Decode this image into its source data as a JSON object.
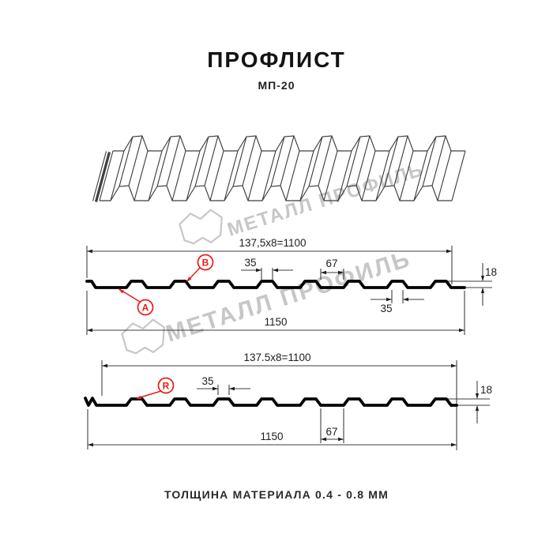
{
  "header": {
    "title": "ПРОФЛИСТ",
    "subtitle": "МП-20"
  },
  "watermark": {
    "brand": "МЕТАЛЛ ПРОФИЛЬ"
  },
  "profile_top": {
    "marker_a": "A",
    "marker_b": "B",
    "dims": {
      "working_width": "137,5x8=1100",
      "rib_top_width": "35",
      "rib_bottom_width": "67",
      "height": "18",
      "rib_top_width_right": "35",
      "overall_width": "1150"
    }
  },
  "profile_bottom": {
    "marker_r": "R",
    "dims": {
      "working_width": "137.5x8=1100",
      "rib_top_width": "35",
      "rib_bottom_width": "67",
      "height": "18",
      "overall_width": "1150"
    }
  },
  "footer": {
    "note": "ТОЛЩИНА МАТЕРИАЛА 0.4 - 0.8 ММ"
  },
  "colors": {
    "line_black": "#000000",
    "line_thin": "#3f3f3f",
    "accent_red": "#e81c17",
    "watermark_gray": "#c7c7c7",
    "background": "#ffffff"
  }
}
